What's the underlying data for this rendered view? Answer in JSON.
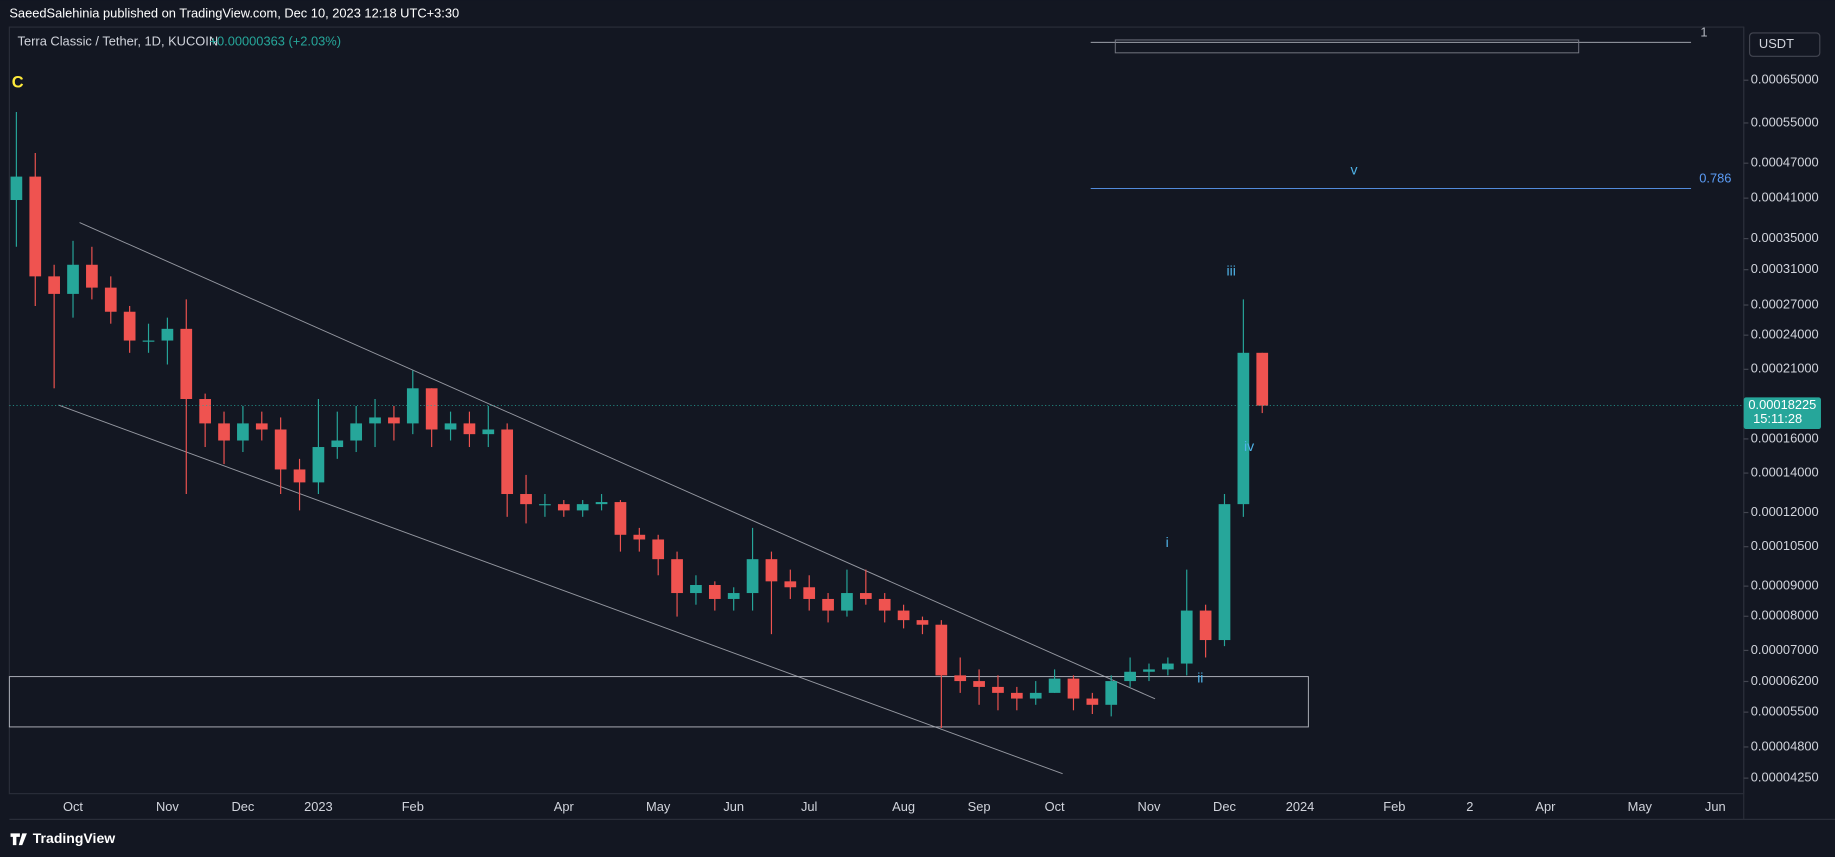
{
  "header": {
    "publisher": "SaeedSalehinia published on TradingView.com, Dec 10, 2023 12:18 UTC+3:30"
  },
  "chart_data": {
    "type": "candlestick",
    "symbol": "Terra Classic / Tether, 1D, KUCOIN",
    "change": "+0.00000363 (+2.03%)",
    "currency": "USDT",
    "countdown": "15:11:28",
    "annotations": [
      "C",
      "i",
      "ii",
      "iii",
      "iv",
      "v",
      "0.786",
      "1"
    ],
    "log_scale": true,
    "grid": false,
    "up_color": "#26a69a",
    "down_color": "#ef5350",
    "ylim": [
      4e-05,
      0.0008
    ],
    "yticks": [
      {
        "value": 0.00065,
        "label": "0.00065000"
      },
      {
        "value": 0.00055,
        "label": "0.00055000"
      },
      {
        "value": 0.00047,
        "label": "0.00047000"
      },
      {
        "value": 0.00041,
        "label": "0.00041000"
      },
      {
        "value": 0.00035,
        "label": "0.00035000"
      },
      {
        "value": 0.00031,
        "label": "0.00031000"
      },
      {
        "value": 0.00027,
        "label": "0.00027000"
      },
      {
        "value": 0.00024,
        "label": "0.00024000"
      },
      {
        "value": 0.00021,
        "label": "0.00021000"
      },
      {
        "value": 0.00016,
        "label": "0.00016000"
      },
      {
        "value": 0.00014,
        "label": "0.00014000"
      },
      {
        "value": 0.00012,
        "label": "0.00012000"
      },
      {
        "value": 0.000105,
        "label": "0.00010500"
      },
      {
        "value": 9e-05,
        "label": "0.00009000"
      },
      {
        "value": 8e-05,
        "label": "0.00008000"
      },
      {
        "value": 7e-05,
        "label": "0.00007000"
      },
      {
        "value": 6.2e-05,
        "label": "0.00006200"
      },
      {
        "value": 5.5e-05,
        "label": "0.00005500"
      },
      {
        "value": 4.8e-05,
        "label": "0.00004800"
      },
      {
        "value": 4.25e-05,
        "label": "0.00004250"
      }
    ],
    "categories": [
      null,
      null,
      null,
      "Oct",
      null,
      null,
      null,
      null,
      "Nov",
      null,
      null,
      null,
      "Dec",
      null,
      null,
      null,
      "2023",
      null,
      null,
      null,
      null,
      "Feb",
      null,
      null,
      null,
      null,
      null,
      null,
      null,
      "Apr",
      null,
      null,
      null,
      null,
      "May",
      null,
      null,
      null,
      "Jun",
      null,
      null,
      null,
      "Jul",
      null,
      null,
      null,
      null,
      "Aug",
      null,
      null,
      null,
      "Sep",
      null,
      null,
      null,
      "Oct",
      null,
      null,
      null,
      null,
      "Nov",
      null,
      null,
      null,
      "Dec",
      null,
      null,
      null,
      "2024",
      null,
      null,
      null,
      null,
      "Feb",
      null,
      null,
      null,
      "2",
      null,
      null,
      null,
      "Apr",
      null,
      null,
      null,
      null,
      "May",
      null,
      null,
      null,
      "Jun",
      null
    ],
    "open": [
      0.000407,
      0.000446,
      0.000302,
      0.000282,
      0.000316,
      0.000289,
      0.000263,
      0.000235,
      0.000235,
      0.000246,
      0.000187,
      0.00017,
      0.000159,
      0.00017,
      0.000166,
      0.000142,
      0.000135,
      0.000155,
      0.000159,
      0.00017,
      0.000174,
      0.00017,
      0.000195,
      0.000166,
      0.00017,
      0.000163,
      0.000166,
      0.000129,
      0.000124,
      0.000124,
      0.000121,
      0.000124,
      0.000125,
      0.00011,
      0.000108,
      0.0001,
      8.76e-05,
      9.04e-05,
      8.56e-05,
      8.76e-05,
      0.0001,
      9.17e-05,
      8.96e-05,
      8.56e-05,
      8.18e-05,
      8.76e-05,
      8.56e-05,
      8.18e-05,
      7.88e-05,
      7.74e-05,
      6.35e-05,
      6.21e-05,
      6.07e-05,
      5.93e-05,
      5.8e-05,
      5.93e-05,
      6.27e-05,
      5.8e-05,
      5.66e-05,
      6.21e-05,
      6.44e-05,
      6.5e-05,
      6.65e-05,
      8.18e-05,
      7.29e-05,
      0.000124,
      0.000224,
      null,
      null,
      null,
      null,
      null,
      null,
      null,
      null,
      null,
      null,
      null,
      null,
      null,
      null,
      null,
      null,
      null,
      null,
      null,
      null,
      null,
      null,
      null,
      null,
      null
    ],
    "high": [
      0.000574,
      0.000489,
      0.000316,
      0.000347,
      0.000339,
      0.000302,
      0.000269,
      0.000251,
      0.000257,
      0.000276,
      0.000191,
      0.000178,
      0.000182,
      0.000178,
      0.000174,
      0.000148,
      0.000187,
      0.000178,
      0.000182,
      0.000187,
      0.000182,
      0.000209,
      0.000195,
      0.000178,
      0.000178,
      0.000182,
      0.00017,
      0.000139,
      0.000129,
      0.000126,
      0.000126,
      0.000129,
      0.000126,
      0.000113,
      0.00011,
      0.000103,
      9.39e-05,
      9.17e-05,
      8.96e-05,
      0.000113,
      0.000103,
      9.6e-05,
      9.39e-05,
      8.76e-05,
      9.6e-05,
      9.6e-05,
      8.76e-05,
      8.37e-05,
      7.99e-05,
      7.88e-05,
      6.81e-05,
      6.5e-05,
      6.35e-05,
      6.07e-05,
      6.21e-05,
      6.5e-05,
      6.35e-05,
      5.93e-05,
      6.35e-05,
      6.81e-05,
      6.65e-05,
      6.81e-05,
      9.6e-05,
      8.37e-05,
      0.000129,
      0.000276,
      0.000224,
      null,
      null,
      null,
      null,
      null,
      null,
      null,
      null,
      null,
      null,
      null,
      null,
      null,
      null,
      null,
      null,
      null,
      null,
      null,
      null,
      null,
      null,
      null,
      null,
      null
    ],
    "low": [
      0.000339,
      0.000269,
      0.000195,
      0.000257,
      0.000276,
      0.000251,
      0.000224,
      0.000224,
      0.000214,
      0.000129,
      0.000155,
      0.000145,
      0.000152,
      0.000159,
      0.000129,
      0.000121,
      0.000129,
      0.000148,
      0.000152,
      0.000155,
      0.000159,
      0.000163,
      0.000155,
      0.000159,
      0.000155,
      0.000155,
      0.000118,
      0.000115,
      0.000118,
      0.000118,
      0.000118,
      0.000121,
      0.000103,
      0.000103,
      9.39e-05,
      7.99e-05,
      8.37e-05,
      8.18e-05,
      8.18e-05,
      8.18e-05,
      7.46e-05,
      8.56e-05,
      8.18e-05,
      7.81e-05,
      7.99e-05,
      8.37e-05,
      7.81e-05,
      7.63e-05,
      7.46e-05,
      5.17e-05,
      5.93e-05,
      5.66e-05,
      5.54e-05,
      5.54e-05,
      5.66e-05,
      5.93e-05,
      5.54e-05,
      5.46e-05,
      5.41e-05,
      6.07e-05,
      6.21e-05,
      6.35e-05,
      6.35e-05,
      6.81e-05,
      7.12e-05,
      0.000118,
      0.000177,
      null,
      null,
      null,
      null,
      null,
      null,
      null,
      null,
      null,
      null,
      null,
      null,
      null,
      null,
      null,
      null,
      null,
      null,
      null,
      null,
      null,
      null,
      null,
      null,
      null
    ],
    "close": [
      0.000446,
      0.000302,
      0.000282,
      0.000316,
      0.000289,
      0.000263,
      0.000235,
      0.000235,
      0.000246,
      0.000187,
      0.00017,
      0.000159,
      0.00017,
      0.000166,
      0.000142,
      0.000135,
      0.000155,
      0.000159,
      0.00017,
      0.000174,
      0.00017,
      0.000195,
      0.000166,
      0.00017,
      0.000163,
      0.000166,
      0.000129,
      0.000124,
      0.000124,
      0.000121,
      0.000124,
      0.000125,
      0.00011,
      0.000108,
      0.0001,
      8.76e-05,
      9.04e-05,
      8.56e-05,
      8.76e-05,
      0.0001,
      9.17e-05,
      8.96e-05,
      8.56e-05,
      8.18e-05,
      8.76e-05,
      8.56e-05,
      8.18e-05,
      7.88e-05,
      7.74e-05,
      6.35e-05,
      6.21e-05,
      6.07e-05,
      5.93e-05,
      5.8e-05,
      5.93e-05,
      6.27e-05,
      5.8e-05,
      5.66e-05,
      6.21e-05,
      6.44e-05,
      6.5e-05,
      6.65e-05,
      8.18e-05,
      7.29e-05,
      0.000124,
      0.000224,
      0.00018225,
      null,
      null,
      null,
      null,
      null,
      null,
      null,
      null,
      null,
      null,
      null,
      null,
      null,
      null,
      null,
      null,
      null,
      null,
      null,
      null,
      null,
      null,
      null,
      null,
      null
    ]
  },
  "footer": {
    "brand": "TradingView"
  }
}
